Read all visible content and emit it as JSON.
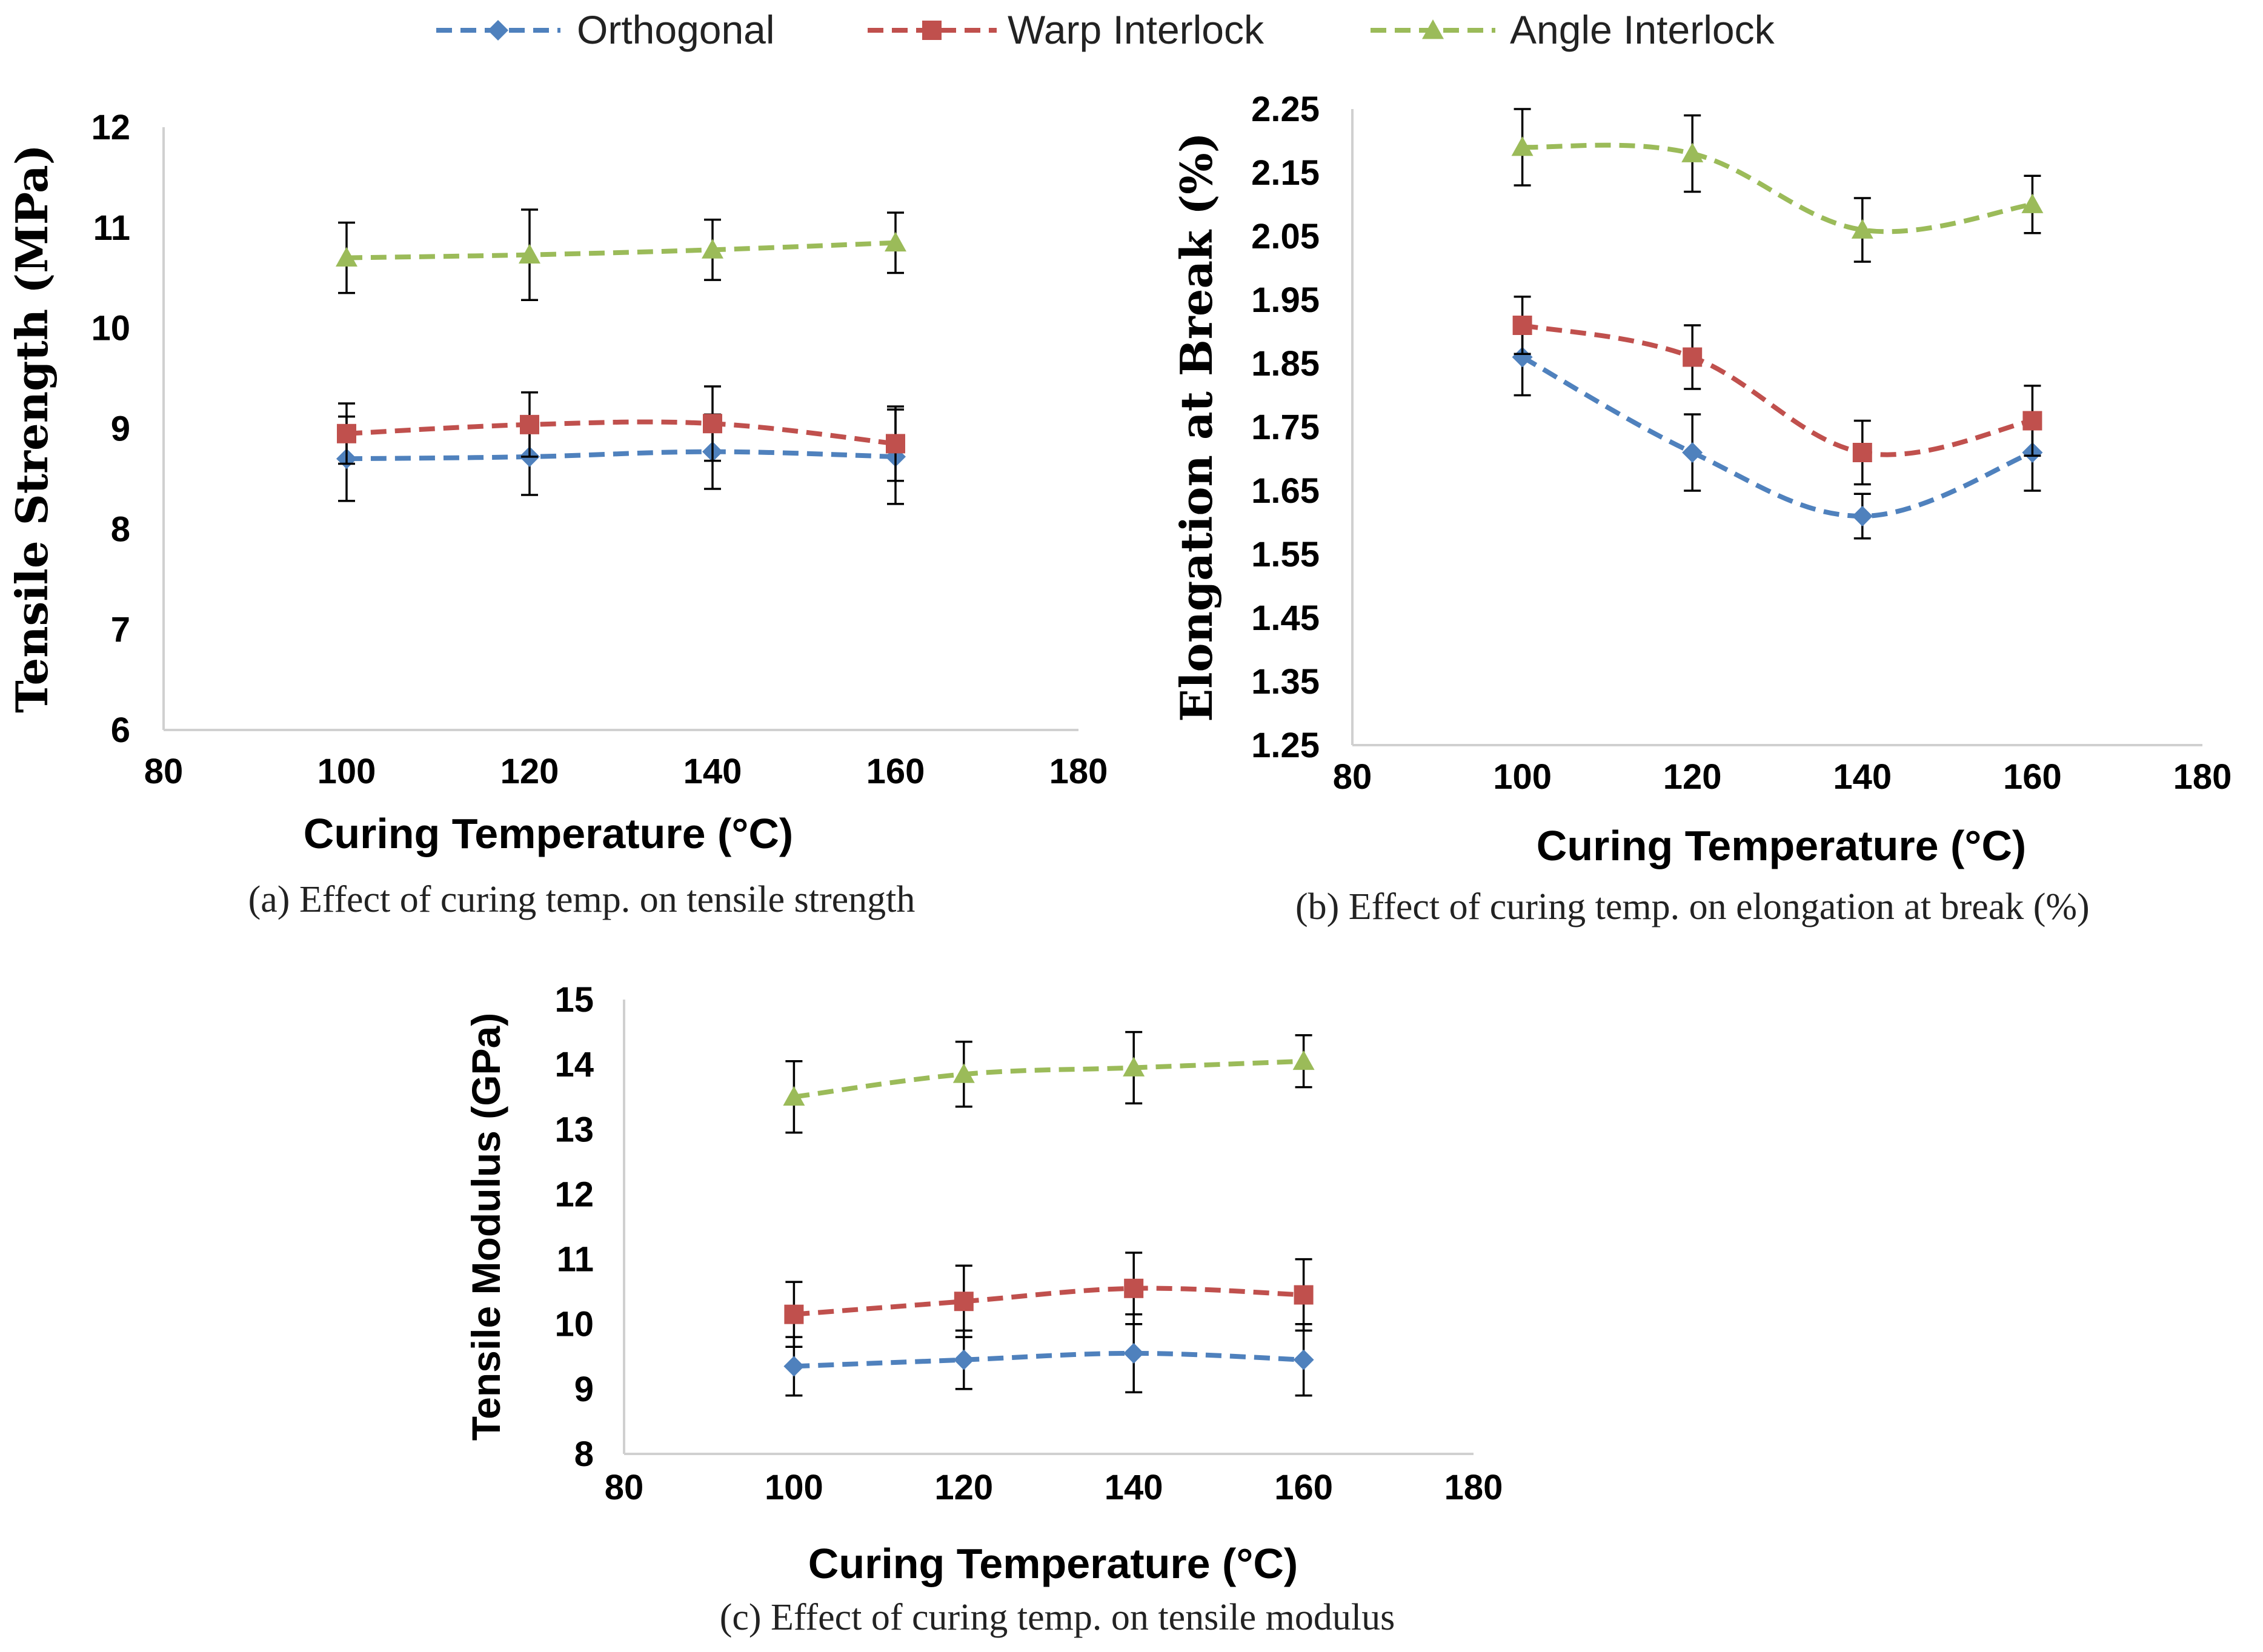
{
  "legend": [
    {
      "name": "Orthogonal",
      "color": "#4f81bd",
      "marker": "diamond"
    },
    {
      "name": "Warp Interlock",
      "color": "#c0504d",
      "marker": "square"
    },
    {
      "name": "Angle Interlock",
      "color": "#9bbb59",
      "marker": "triangle"
    }
  ],
  "chart_data": [
    {
      "id": "a",
      "type": "line",
      "caption": "(a) Effect of curing temp. on tensile strength",
      "xlabel": "Curing Temperature (°C)",
      "ylabel": "Tensile Strength (MPa)",
      "xlim": [
        80,
        180
      ],
      "xticks": [
        "80",
        "100",
        "120",
        "140",
        "160",
        "180"
      ],
      "ylim": [
        6,
        12
      ],
      "yticks": [
        "6",
        "7",
        "8",
        "9",
        "10",
        "11",
        "12"
      ],
      "x": [
        100,
        120,
        140,
        160
      ],
      "series": [
        {
          "name": "Orthogonal",
          "values": [
            8.7,
            8.72,
            8.77,
            8.72
          ],
          "errors": [
            0.42,
            0.38,
            0.37,
            0.47
          ]
        },
        {
          "name": "Warp Interlock",
          "values": [
            8.95,
            9.04,
            9.05,
            8.85
          ],
          "errors": [
            0.3,
            0.32,
            0.37,
            0.37
          ]
        },
        {
          "name": "Angle Interlock",
          "values": [
            10.7,
            10.73,
            10.78,
            10.85
          ],
          "errors": [
            0.35,
            0.45,
            0.3,
            0.3
          ]
        }
      ]
    },
    {
      "id": "b",
      "type": "line",
      "caption": "(b) Effect of curing temp. on elongation at break (%)",
      "xlabel": "Curing Temperature (°C)",
      "ylabel": "Elongation at Break (%)",
      "xlim": [
        80,
        180
      ],
      "xticks": [
        "80",
        "100",
        "120",
        "140",
        "160",
        "180"
      ],
      "ylim": [
        1.25,
        2.25
      ],
      "yticks": [
        "1.25",
        "1.35",
        "1.45",
        "1.55",
        "1.65",
        "1.75",
        "1.85",
        "1.95",
        "2.05",
        "2.15",
        "2.25"
      ],
      "x": [
        100,
        120,
        140,
        160
      ],
      "series": [
        {
          "name": "Orthogonal",
          "values": [
            1.86,
            1.71,
            1.61,
            1.71
          ],
          "errors": [
            0.06,
            0.06,
            0.035,
            0.06
          ]
        },
        {
          "name": "Warp Interlock",
          "values": [
            1.91,
            1.86,
            1.71,
            1.76
          ],
          "errors": [
            0.045,
            0.05,
            0.05,
            0.055
          ]
        },
        {
          "name": "Angle Interlock",
          "values": [
            2.19,
            2.18,
            2.06,
            2.1
          ],
          "errors": [
            0.06,
            0.06,
            0.05,
            0.045
          ]
        }
      ]
    },
    {
      "id": "c",
      "type": "line",
      "caption": "(c) Effect of curing temp. on tensile modulus",
      "xlabel": "Curing Temperature (°C)",
      "ylabel": "Tensile Modulus (GPa)",
      "xlim": [
        80,
        180
      ],
      "xticks": [
        "80",
        "100",
        "120",
        "140",
        "160",
        "180"
      ],
      "ylim": [
        8,
        15
      ],
      "yticks": [
        "8",
        "9",
        "10",
        "11",
        "12",
        "13",
        "14",
        "15"
      ],
      "x": [
        100,
        120,
        140,
        160
      ],
      "series": [
        {
          "name": "Orthogonal",
          "values": [
            9.35,
            9.45,
            9.55,
            9.45
          ],
          "errors": [
            0.45,
            0.45,
            0.6,
            0.55
          ]
        },
        {
          "name": "Warp Interlock",
          "values": [
            10.15,
            10.35,
            10.55,
            10.45
          ],
          "errors": [
            0.5,
            0.55,
            0.55,
            0.55
          ]
        },
        {
          "name": "Angle Interlock",
          "values": [
            13.5,
            13.85,
            13.95,
            14.05
          ],
          "errors": [
            0.55,
            0.5,
            0.55,
            0.4
          ]
        }
      ]
    }
  ]
}
